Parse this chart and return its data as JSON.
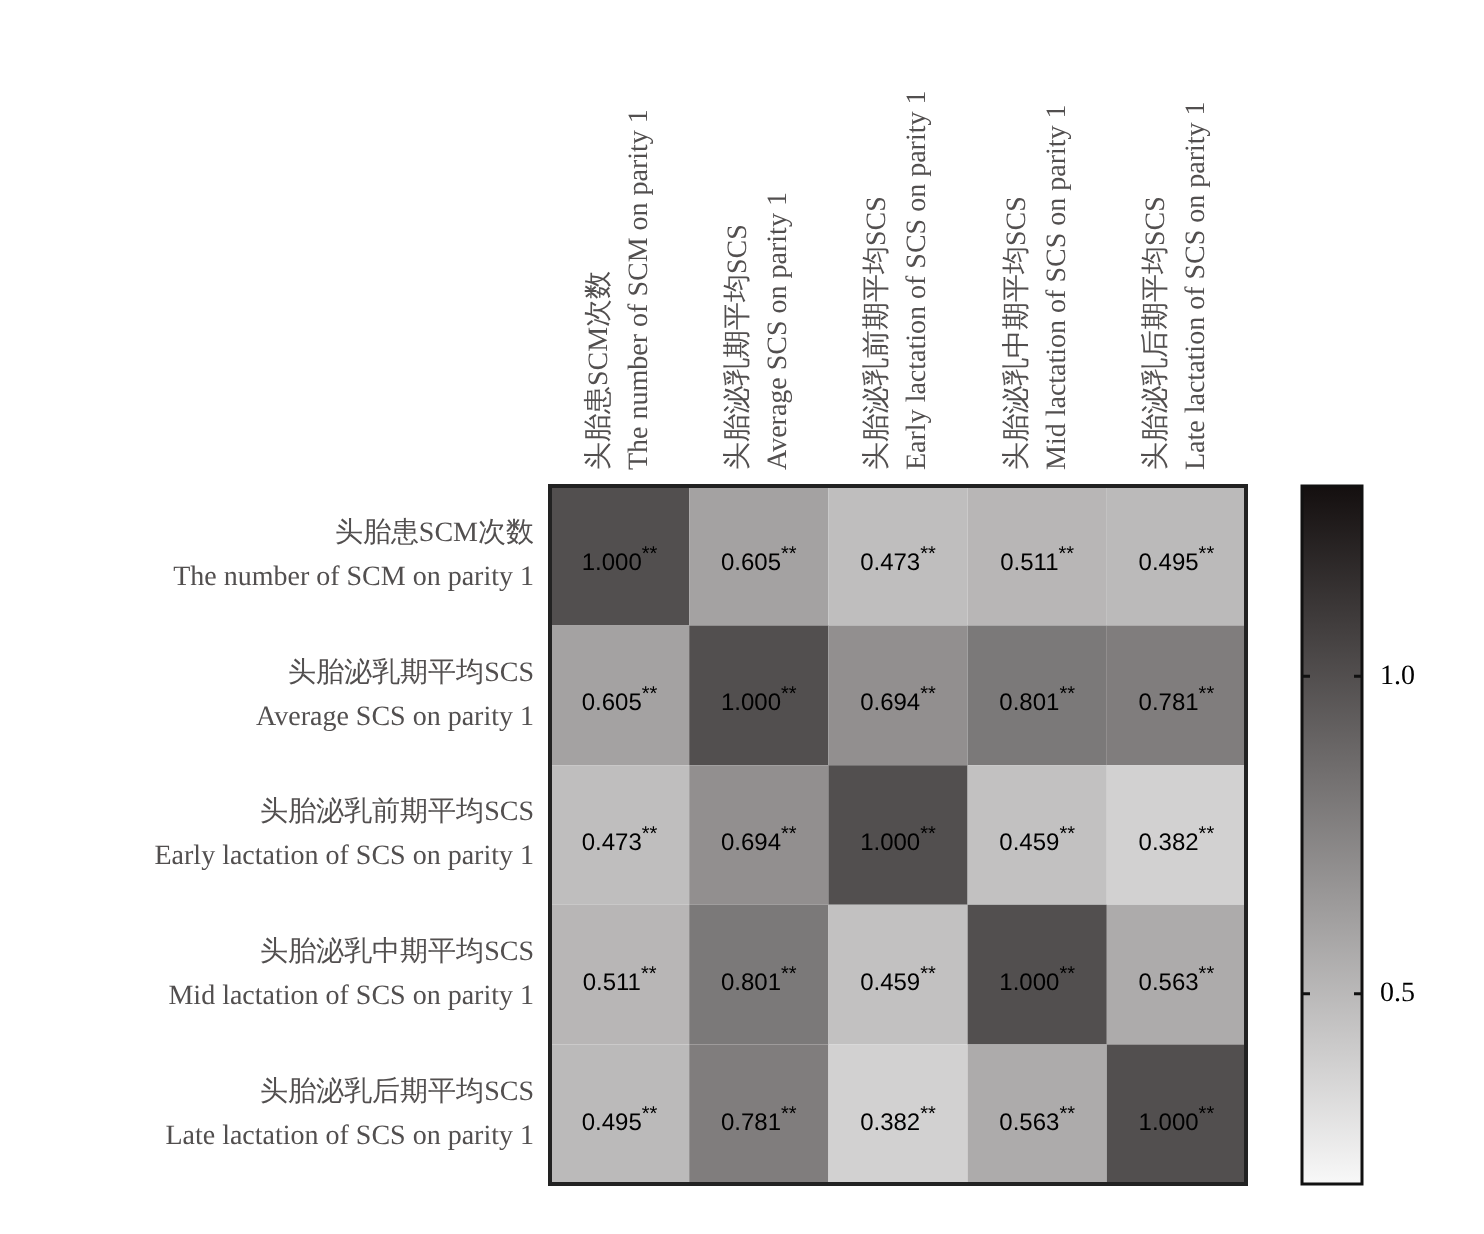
{
  "chart_data": {
    "type": "heatmap",
    "categories": [
      "头胎患SCM次数\nThe number of SCM on parity 1",
      "头胎泌乳期平均SCS\nAverage SCS on parity 1",
      "头胎泌乳前期平均SCS\nEarly lactation of SCS on parity 1",
      "头胎泌乳中期平均SCS\nMid lactation of SCS on parity 1",
      "头胎泌乳后期平均SCS\nLate lactation of SCS on parity 1"
    ],
    "y_categories": [
      "头胎患SCM次数\nThe number of SCM on parity 1",
      "头胎泌乳期平均SCS\nAverage SCS on parity 1",
      "头胎泌乳前期平均SCS\nEarly lactation of SCS on parity 1",
      "头胎泌乳中期平均SCS\nMid lactation of SCS on parity 1",
      "头胎泌乳后期平均SCS\nLate lactation of SCS on parity 1"
    ],
    "cells": [
      [
        1.0,
        0.605,
        0.473,
        0.511,
        0.495
      ],
      [
        0.605,
        1.0,
        0.694,
        0.801,
        0.781
      ],
      [
        0.473,
        0.694,
        1.0,
        0.459,
        0.382
      ],
      [
        0.511,
        0.801,
        0.459,
        1.0,
        0.563
      ],
      [
        0.495,
        0.781,
        0.382,
        0.563,
        1.0
      ]
    ],
    "cell_labels": [
      [
        "1.000$^{**}$",
        "0.605$^{**}$",
        "0.473$^{**}$",
        "0.511$^{**}$",
        "0.495$^{**}$"
      ],
      [
        "0.605$^{**}$",
        "1.000$^{**}$",
        "0.694$^{**}$",
        "0.801$^{**}$",
        "0.781$^{**}$"
      ],
      [
        "0.473$^{**}$",
        "0.694$^{**}$",
        "1.000$^{**}$",
        "0.459$^{**}$",
        "0.382$^{**}$"
      ],
      [
        "0.511$^{**}$",
        "0.801$^{**}$",
        "0.459$^{**}$",
        "1.000$^{**}$",
        "0.563$^{**}$"
      ],
      [
        "0.495$^{**}$",
        "0.781$^{**}$",
        "0.382$^{**}$",
        "0.563$^{**}$",
        "1.000$^{**}$"
      ]
    ],
    "clim": [
      0.2,
      1.3
    ],
    "cticks": [
      {
        "value": 1,
        "label": "1.0"
      },
      0.5
    ]
  }
}
